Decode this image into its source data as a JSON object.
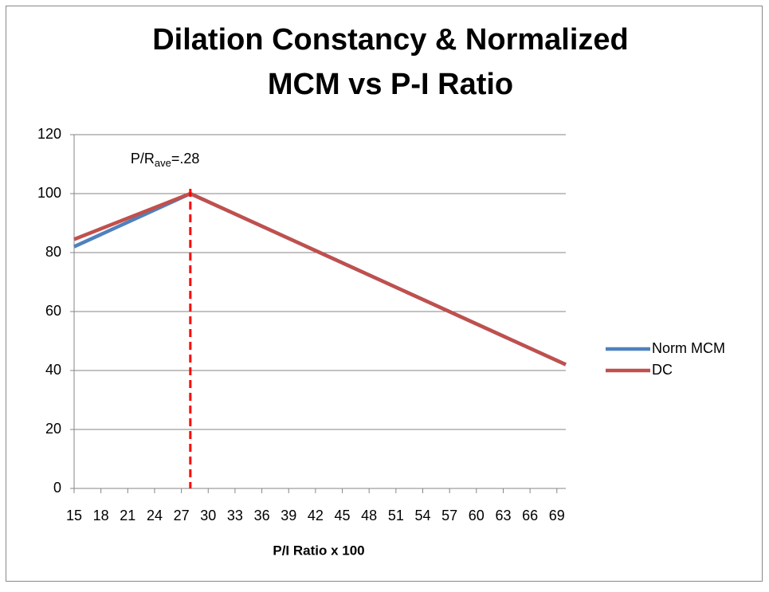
{
  "chart_data": {
    "type": "line",
    "title": [
      "Dilation Constancy & Normalized",
      "MCM vs P-I Ratio"
    ],
    "x_label": "P/I Ratio x 100",
    "xlim": [
      15,
      70
    ],
    "xticks": [
      15,
      18,
      21,
      24,
      27,
      30,
      33,
      36,
      39,
      42,
      45,
      48,
      51,
      54,
      57,
      60,
      63,
      66,
      69
    ],
    "ylim": [
      0,
      120
    ],
    "yticks": [
      0,
      20,
      40,
      60,
      80,
      100,
      120
    ],
    "grid": true,
    "legend": "right",
    "series": [
      {
        "name": "Norm MCM",
        "color": "#4f81bd",
        "x": [
          15,
          28,
          70
        ],
        "values": [
          82,
          100,
          42
        ]
      },
      {
        "name": "DC",
        "color": "#c0504d",
        "x": [
          15,
          28,
          70
        ],
        "values": [
          84.5,
          100,
          42
        ]
      }
    ],
    "annotation": {
      "text": "P/R",
      "subscript": "ave",
      "suffix": "=.28",
      "x": 28,
      "color": "#ff0000"
    }
  }
}
